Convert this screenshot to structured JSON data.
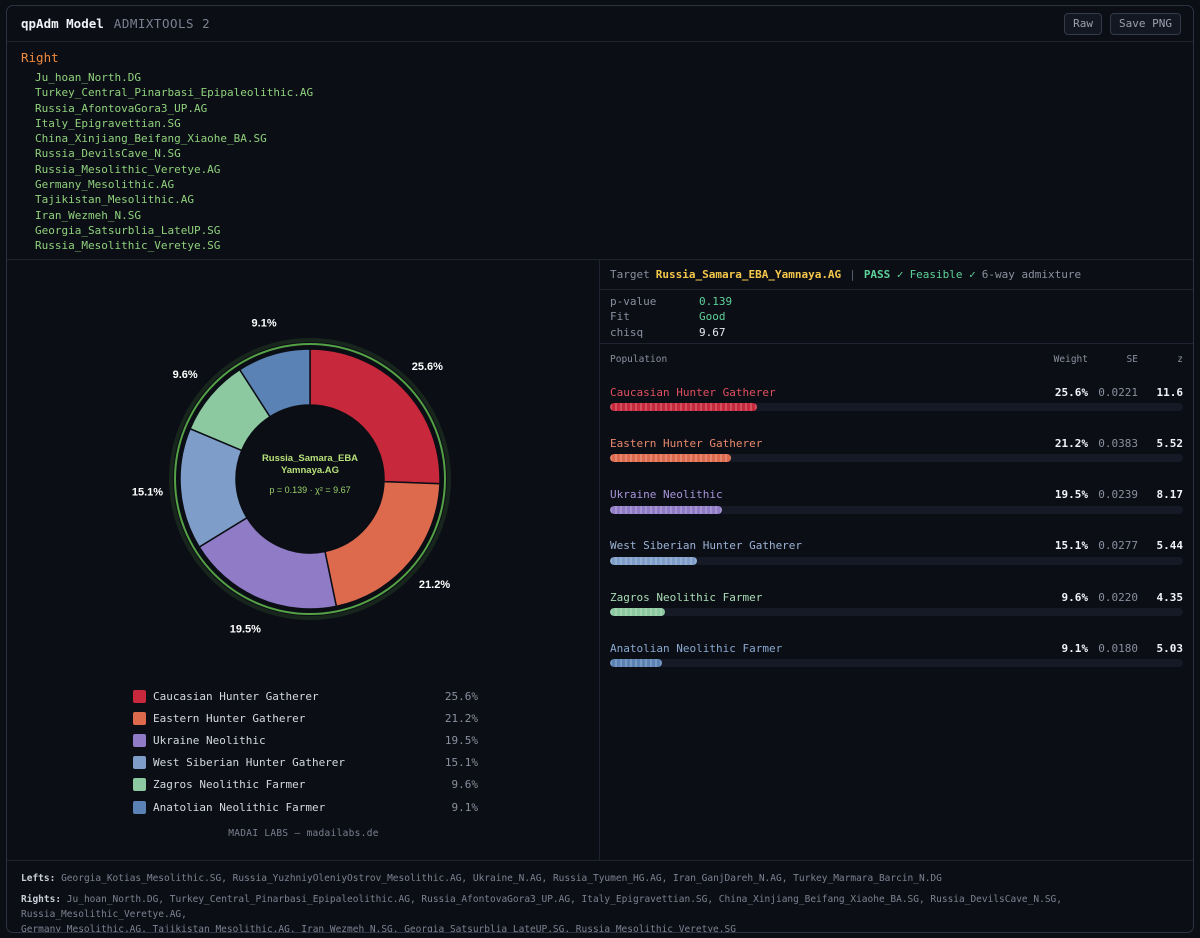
{
  "header": {
    "title": "qpAdm Model",
    "subtitle": "ADMIXTOOLS 2",
    "raw_label": "Raw",
    "save_label": "Save PNG"
  },
  "right_section": {
    "title": "Right",
    "items": [
      "Ju_hoan_North.DG",
      "Turkey_Central_Pinarbasi_Epipaleolithic.AG",
      "Russia_AfontovaGora3_UP.AG",
      "Italy_Epigravettian.SG",
      "China_Xinjiang_Beifang_Xiaohe_BA.SG",
      "Russia_DevilsCave_N.SG",
      "Russia_Mesolithic_Veretye.AG",
      "Germany_Mesolithic.AG",
      "Tajikistan_Mesolithic.AG",
      "Iran_Wezmeh_N.SG",
      "Georgia_Satsurblia_LateUP.SG",
      "Russia_Mesolithic_Veretye.SG"
    ]
  },
  "donut": {
    "center_line1": "Russia_Samara_EBA",
    "center_line2": "Yamnaya.AG",
    "center_stats": "p = 0.139 · χ² = 9.67"
  },
  "target": {
    "label": "Target",
    "name": "Russia_Samara_EBA_Yamnaya.AG",
    "sep": "|",
    "pass": "PASS ✓",
    "feasible": "Feasible ✓",
    "way": "6-way admixture"
  },
  "stats": [
    {
      "key": "p-value",
      "value": "0.139",
      "color": "#5ed29a"
    },
    {
      "key": "Fit",
      "value": "Good",
      "color": "#5ed29a"
    },
    {
      "key": "chisq",
      "value": "9.67",
      "color": "#e6e9ef"
    }
  ],
  "table_headers": {
    "population": "Population",
    "weight": "Weight",
    "se": "SE",
    "z": "z"
  },
  "brand": "MADAI LABS — madailabs.de",
  "footer": {
    "lefts_label": "Lefts:",
    "lefts": "Georgia_Kotias_Mesolithic.SG, Russia_YuzhniyOleniyOstrov_Mesolithic.AG, Ukraine_N.AG, Russia_Tyumen_HG.AG, Iran_GanjDareh_N.AG, Turkey_Marmara_Barcin_N.DG",
    "rights_label": "Rights:",
    "rights_line1": "Ju_hoan_North.DG, Turkey_Central_Pinarbasi_Epipaleolithic.AG, Russia_AfontovaGora3_UP.AG, Italy_Epigravettian.SG, China_Xinjiang_Beifang_Xiaohe_BA.SG, Russia_DevilsCave_N.SG, Russia_Mesolithic_Veretye.AG,",
    "rights_line2": "Germany_Mesolithic.AG, Tajikistan_Mesolithic.AG, Iran_Wezmeh_N.SG, Georgia_Satsurblia_LateUP.SG, Russia_Mesolithic_Veretye.SG"
  },
  "chart_data": {
    "type": "pie",
    "categories": [
      "Caucasian Hunter Gatherer",
      "Eastern Hunter Gatherer",
      "Ukraine Neolithic",
      "West Siberian Hunter Gatherer",
      "Zagros Neolithic Farmer",
      "Anatolian Neolithic Farmer"
    ],
    "values": [
      25.6,
      21.2,
      19.5,
      15.1,
      9.6,
      9.1
    ],
    "labels": [
      "25.6%",
      "21.2%",
      "19.5%",
      "15.1%",
      "9.6%",
      "9.1%"
    ],
    "se": [
      "0.0221",
      "0.0383",
      "0.0239",
      "0.0277",
      "0.0220",
      "0.0180"
    ],
    "z": [
      "11.6",
      "5.52",
      "8.17",
      "5.44",
      "4.35",
      "5.03"
    ],
    "colors": [
      "#c8283b",
      "#de6a4e",
      "#8f7bc6",
      "#7e9dc9",
      "#8cc9a0",
      "#5a82b4"
    ],
    "name_colors": [
      "#e0505f",
      "#e98a6d",
      "#a796d8",
      "#9db3d6",
      "#a9dcb6",
      "#8aa8d0"
    ]
  }
}
